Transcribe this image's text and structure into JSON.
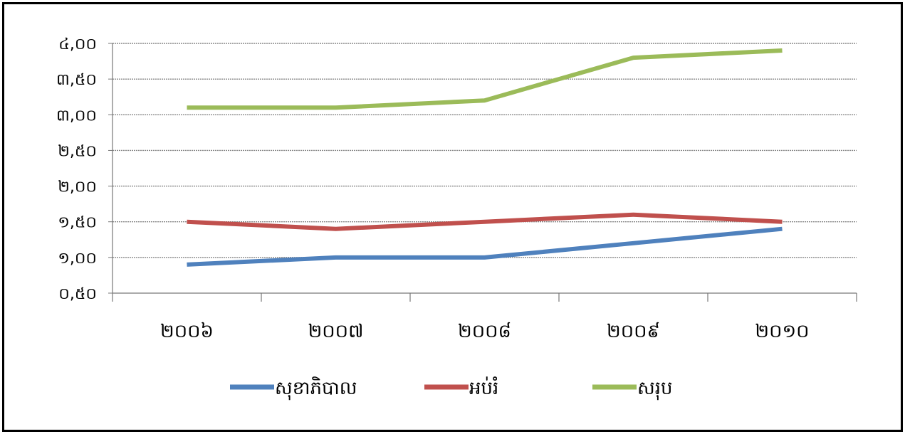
{
  "chart_data": {
    "type": "line",
    "categories": [
      "២០០៦",
      "២០០៧",
      "២០០៨",
      "២០០៩",
      "២០១០"
    ],
    "series": [
      {
        "name": "សុខាភិបាល",
        "color": "#4F81BD",
        "values": [
          0.9,
          1.0,
          1.0,
          1.2,
          1.4
        ]
      },
      {
        "name": "អប់រំ",
        "color": "#C0504D",
        "values": [
          1.5,
          1.4,
          1.5,
          1.6,
          1.5
        ]
      },
      {
        "name": "សរុប",
        "color": "#9BBB59",
        "values": [
          3.1,
          3.1,
          3.2,
          3.8,
          3.9
        ]
      }
    ],
    "yticks": [
      "០,៥០",
      "១,០០",
      "១,៥០",
      "២,០០",
      "២,៥០",
      "៣,០០",
      "៣,៥០",
      "៤,០០"
    ],
    "ylim": [
      0.5,
      4.0
    ],
    "grid": true,
    "legend_position": "bottom",
    "title": "",
    "xlabel": "",
    "ylabel": ""
  }
}
